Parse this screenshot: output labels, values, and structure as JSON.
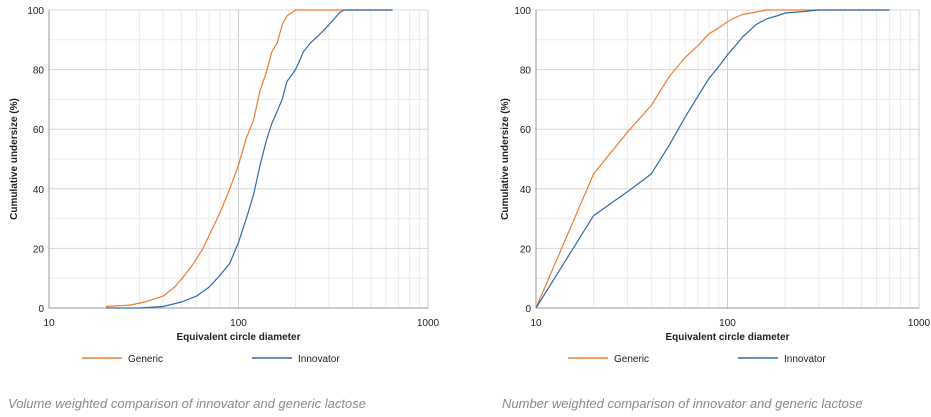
{
  "chart_data": [
    {
      "type": "line",
      "caption": "Volume weighted comparison of innovator and generic lactose",
      "xlabel": "Equivalent circle diameter",
      "ylabel": "Cumulative undersize (%)",
      "xscale": "log",
      "xlim": [
        10,
        1000
      ],
      "ylim": [
        0,
        100
      ],
      "xticks": [
        "10",
        "100",
        "1000"
      ],
      "yticks": [
        "0",
        "20",
        "40",
        "60",
        "80",
        "100"
      ],
      "grid": true,
      "legend_position": "bottom",
      "series": [
        {
          "name": "Generic",
          "color": "#ed7d31",
          "x": [
            20,
            27,
            32,
            40,
            46,
            52,
            58,
            65,
            72,
            80,
            90,
            100,
            110,
            120,
            130,
            140,
            150,
            160,
            170,
            180,
            190,
            200,
            210,
            230,
            260,
            300,
            400,
            650
          ],
          "y": [
            0.5,
            1,
            2,
            4,
            7,
            11,
            15,
            20,
            26,
            32,
            40,
            48,
            57,
            63,
            73,
            79,
            86,
            89,
            95,
            98,
            99,
            100,
            100,
            100,
            100,
            100,
            100,
            100
          ]
        },
        {
          "name": "Innovator",
          "color": "#2e6bb0",
          "x": [
            20,
            30,
            40,
            50,
            60,
            70,
            80,
            90,
            100,
            110,
            120,
            130,
            140,
            150,
            160,
            170,
            180,
            190,
            200,
            210,
            220,
            240,
            260,
            280,
            300,
            320,
            340,
            360,
            400,
            650
          ],
          "y": [
            0,
            0,
            0.5,
            2,
            4,
            7,
            11,
            15,
            22,
            30,
            38,
            48,
            56,
            62,
            66,
            70,
            76,
            78,
            80,
            83,
            86,
            89,
            91,
            93,
            95,
            97,
            99,
            100,
            100,
            100
          ]
        }
      ]
    },
    {
      "type": "line",
      "caption": "Number weighted comparison of innovator and generic lactose",
      "xlabel": "Equivalent circle diameter",
      "ylabel": "Cumulative undersize (%)",
      "xscale": "log",
      "xlim": [
        10,
        1000
      ],
      "ylim": [
        0,
        100
      ],
      "xticks": [
        "10",
        "100",
        "1000"
      ],
      "yticks": [
        "0",
        "20",
        "40",
        "60",
        "80",
        "100"
      ],
      "grid": true,
      "legend_position": "bottom",
      "series": [
        {
          "name": "Generic",
          "color": "#ed7d31",
          "x": [
            10,
            20,
            30,
            40,
            50,
            60,
            70,
            80,
            90,
            100,
            110,
            120,
            140,
            160,
            200,
            250,
            300,
            500,
            700
          ],
          "y": [
            0,
            45,
            59,
            68,
            78,
            84,
            88,
            92,
            94,
            96,
            97.5,
            98.5,
            99.3,
            100,
            100,
            100,
            100,
            100,
            100
          ]
        },
        {
          "name": "Innovator",
          "color": "#2e6bb0",
          "x": [
            10,
            20,
            30,
            40,
            50,
            60,
            70,
            80,
            90,
            100,
            110,
            120,
            130,
            140,
            160,
            180,
            200,
            250,
            300,
            500,
            700
          ],
          "y": [
            0,
            31,
            39,
            45,
            55,
            64,
            71,
            77,
            81,
            85,
            88,
            91,
            93,
            95,
            97,
            98,
            99,
            99.5,
            100,
            100,
            100
          ]
        }
      ]
    }
  ]
}
